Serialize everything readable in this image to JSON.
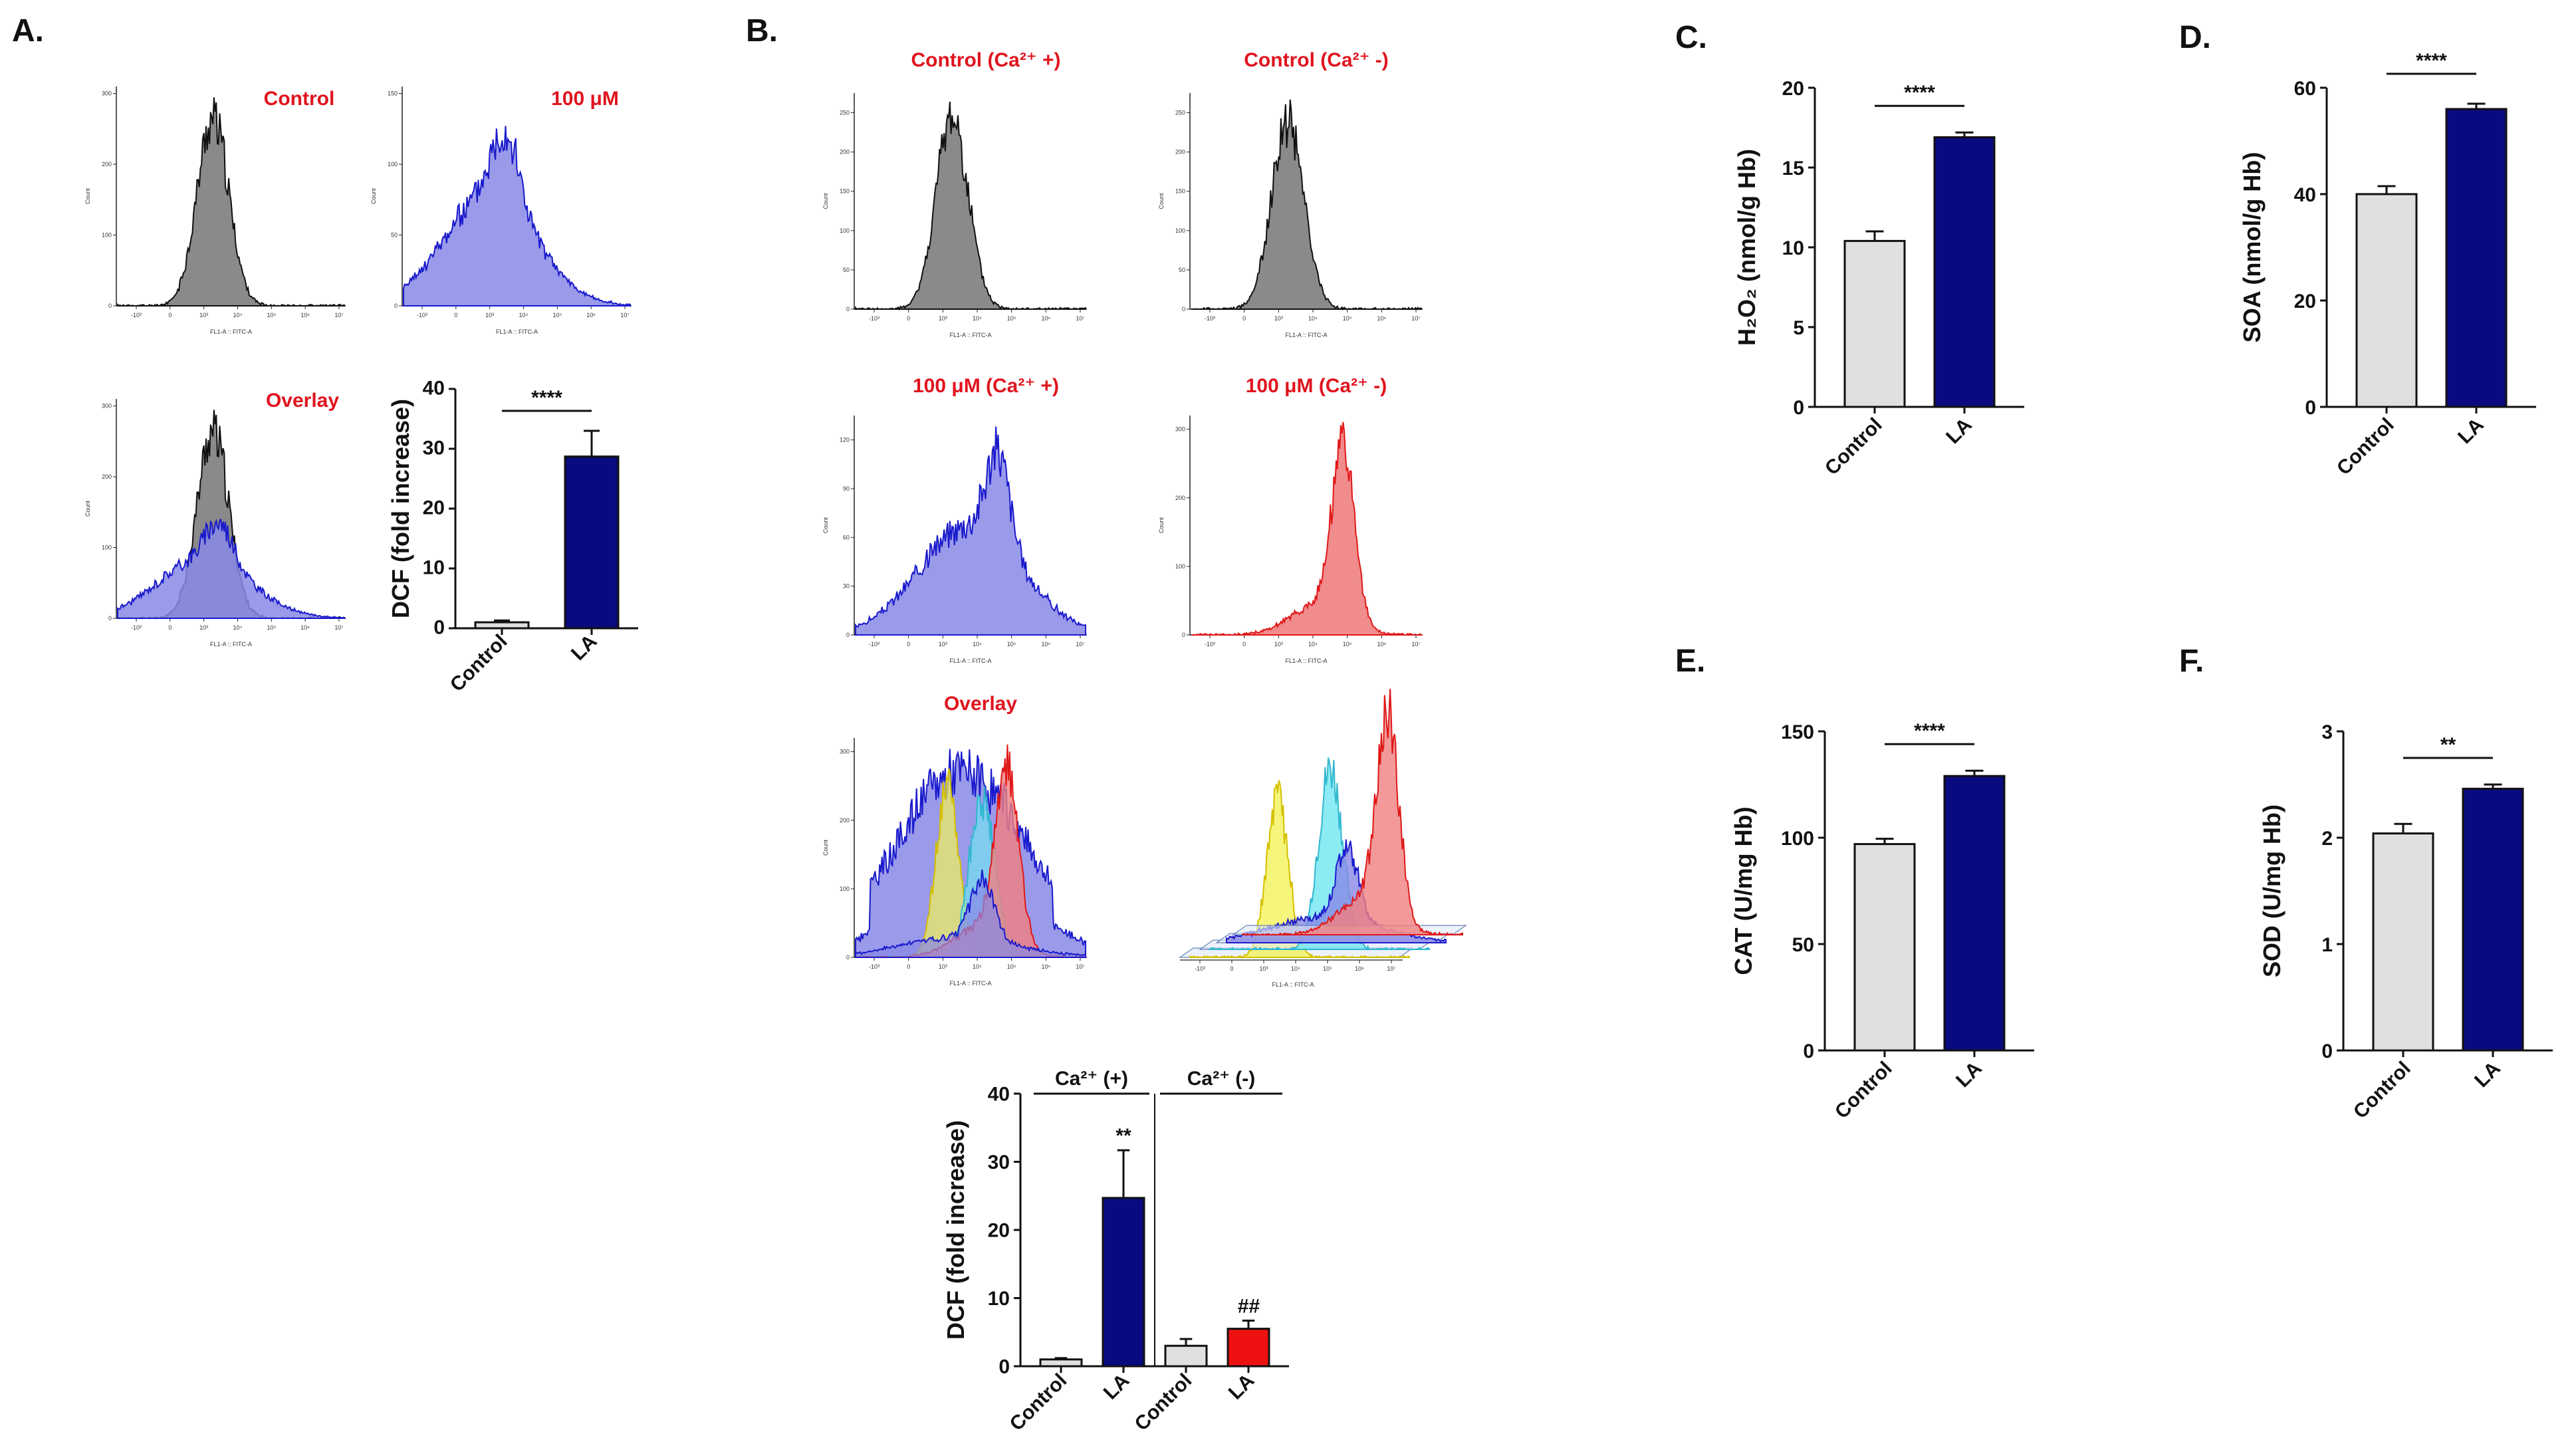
{
  "panels": {
    "A": {
      "label": "A.",
      "hist_titles": [
        "Control",
        "100 μM",
        "Overlay"
      ],
      "axis_x_label": "FL1-A :: FITC-A",
      "axis_y_label": "Count",
      "x_ticks": [
        "-10³",
        "0",
        "10³",
        "10⁴",
        "10⁵",
        "10⁶",
        "10⁷"
      ]
    },
    "B": {
      "label": "B.",
      "hist_titles": [
        "Control (Ca²⁺ +)",
        "Control (Ca²⁺ -)",
        "100 μM (Ca²⁺ +)",
        "100 μM (Ca²⁺ -)",
        "Overlay"
      ],
      "axis_x_label": "FL1-A :: FITC-A",
      "axis_y_label": "Count",
      "x_ticks": [
        "-10³",
        "0",
        "10³",
        "10⁴",
        "10⁵",
        "10⁶",
        "10⁷"
      ],
      "group_labels": [
        "Ca²⁺ (+)",
        "Ca²⁺ (-)"
      ],
      "significance": [
        "**",
        "##"
      ]
    },
    "C": {
      "label": "C."
    },
    "D": {
      "label": "D."
    },
    "E": {
      "label": "E."
    },
    "F": {
      "label": "F."
    }
  },
  "histograms": [
    {
      "id": "A-control",
      "title": "Control",
      "y_ticks": [
        0,
        100,
        200,
        300
      ],
      "ymax": 310
    },
    {
      "id": "A-100",
      "title": "100 μM",
      "y_ticks": [
        0,
        50,
        100,
        150
      ],
      "ymax": 155
    },
    {
      "id": "A-overlay",
      "title": "Overlay",
      "y_ticks": [
        0,
        100,
        200,
        300
      ],
      "ymax": 310
    },
    {
      "id": "B-ctrl-plus",
      "title": "Control (Ca²⁺ +)",
      "y_ticks": [
        0,
        50,
        100,
        150,
        200,
        250
      ],
      "ymax": 275
    },
    {
      "id": "B-ctrl-minus",
      "title": "Control (Ca²⁺ -)",
      "y_ticks": [
        0,
        50,
        100,
        150,
        200,
        250
      ],
      "ymax": 275
    },
    {
      "id": "B-100-plus",
      "title": "100 μM (Ca²⁺ +)",
      "y_ticks": [
        0,
        30,
        60,
        90,
        120
      ],
      "ymax": 135
    },
    {
      "id": "B-100-minus",
      "title": "100 μM (Ca²⁺ -)",
      "y_ticks": [
        0,
        100,
        200,
        300
      ],
      "ymax": 320
    },
    {
      "id": "B-overlay",
      "title": "Overlay",
      "y_ticks": [
        0,
        100,
        200,
        300
      ],
      "ymax": 320
    }
  ],
  "colors": {
    "control_gray": "#8a8a8a",
    "treat_blue_fill": "#8888e6",
    "treat_blue_line": "#1a1acc",
    "red_fill": "#f08080",
    "red_line": "#e01818",
    "yellow": "#f2f25a",
    "cyan": "#70e6f0",
    "bar_control": "#e0e0e0",
    "bar_la": "#0a0a80",
    "bar_red": "#ee1111",
    "label_red": "#e0141e"
  },
  "chart_data": [
    {
      "id": "A-bar",
      "type": "bar",
      "title": "",
      "categories": [
        "Control",
        "LA"
      ],
      "values": [
        1,
        28.7
      ],
      "errors": [
        0.3,
        4.3
      ],
      "ylabel": "DCF (fold increase)",
      "ylim": [
        0,
        40
      ],
      "yticks": [
        0,
        10,
        20,
        30,
        40
      ],
      "significance": "****"
    },
    {
      "id": "B-bar",
      "type": "bar",
      "title": "",
      "categories": [
        "Control",
        "LA",
        "Control",
        "LA"
      ],
      "values": [
        1,
        24.7,
        3,
        5.5
      ],
      "errors": [
        0.2,
        7,
        1,
        1.2
      ],
      "groups": [
        "Ca²⁺ (+)",
        "Ca²⁺ (-)"
      ],
      "ylabel": "DCF (fold increase)",
      "ylim": [
        0,
        40
      ],
      "yticks": [
        0,
        10,
        20,
        30,
        40
      ],
      "annotations": [
        "",
        "**",
        "",
        "##"
      ]
    },
    {
      "id": "C",
      "type": "bar",
      "title": "",
      "categories": [
        "Control",
        "LA"
      ],
      "values": [
        10.4,
        16.9
      ],
      "errors": [
        0.6,
        0.3
      ],
      "ylabel": "H₂O₂ (nmol/g Hb)",
      "ylim": [
        0,
        20
      ],
      "yticks": [
        0,
        5,
        10,
        15,
        20
      ],
      "significance": "****"
    },
    {
      "id": "D",
      "type": "bar",
      "title": "",
      "categories": [
        "Control",
        "LA"
      ],
      "values": [
        40,
        56
      ],
      "errors": [
        1.5,
        1
      ],
      "ylabel": "SOA (nmol/g Hb)",
      "ylim": [
        0,
        60
      ],
      "yticks": [
        0,
        20,
        40,
        60
      ],
      "significance": "****"
    },
    {
      "id": "E",
      "type": "bar",
      "title": "",
      "categories": [
        "Control",
        "LA"
      ],
      "values": [
        97,
        129
      ],
      "errors": [
        2.5,
        2.5
      ],
      "ylabel": "CAT (U/mg Hb)",
      "ylim": [
        0,
        150
      ],
      "yticks": [
        0,
        50,
        100,
        150
      ],
      "significance": "****"
    },
    {
      "id": "F",
      "type": "bar",
      "title": "",
      "categories": [
        "Control",
        "LA"
      ],
      "values": [
        2.04,
        2.46
      ],
      "errors": [
        0.09,
        0.04
      ],
      "ylabel": "SOD (U/mg Hb)",
      "ylim": [
        0,
        3
      ],
      "yticks": [
        0,
        1,
        2,
        3
      ],
      "significance": "**"
    }
  ]
}
